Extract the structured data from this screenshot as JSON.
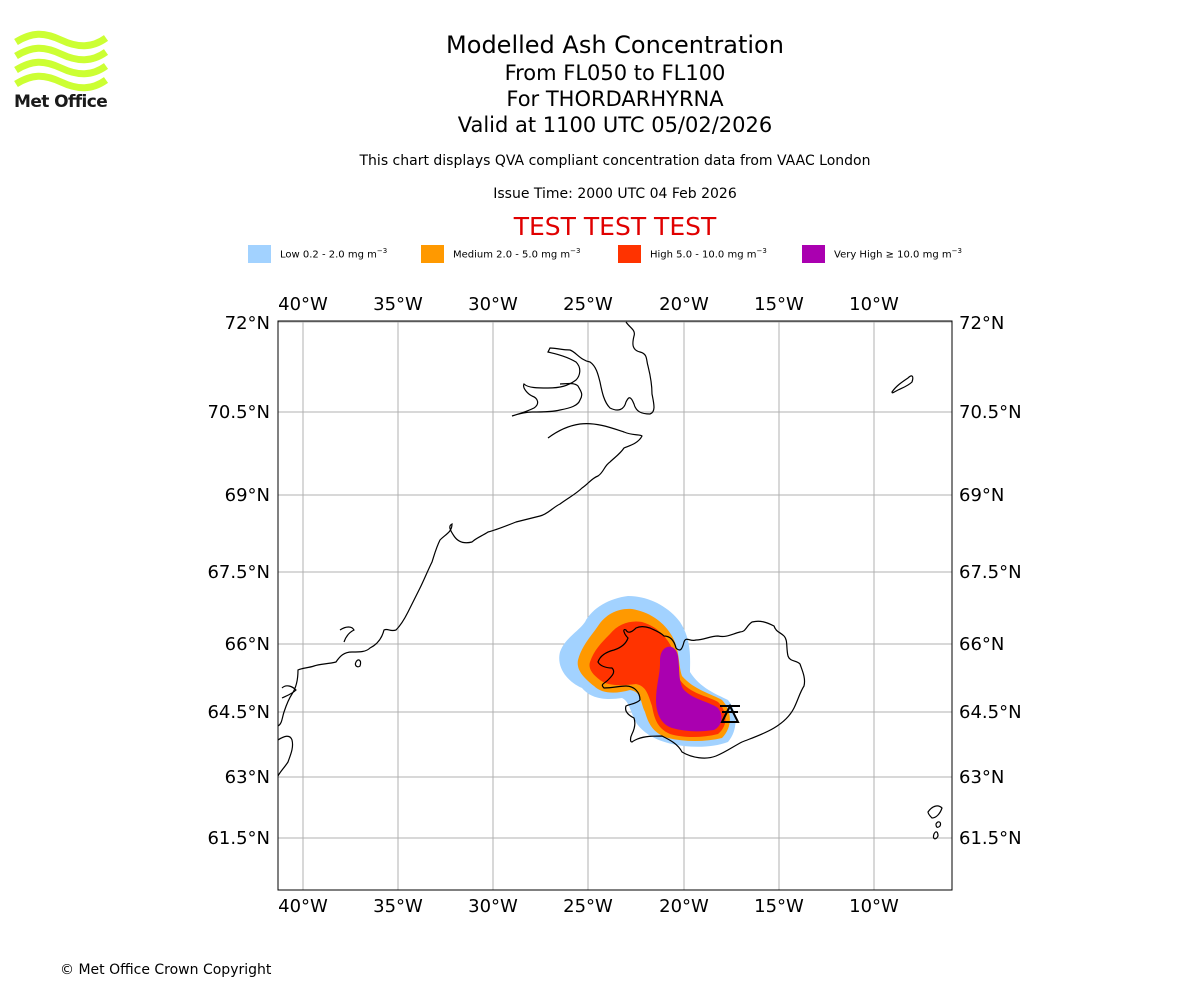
{
  "logo": {
    "text": "Met Office",
    "color": "#ccff33"
  },
  "titles": {
    "main": "Modelled Ash Concentration",
    "levels": "From FL050 to FL100",
    "volcano": "For THORDARHYRNA",
    "valid": "Valid at 1100 UTC 05/02/2026",
    "note": "This chart displays QVA compliant concentration data from VAAC London",
    "issue": "Issue Time: 2000 UTC 04 Feb 2026",
    "test": "TEST TEST TEST"
  },
  "legend": [
    {
      "label": "Low 0.2 - 2.0 mg m",
      "color": "#a2d2ff"
    },
    {
      "label": "Medium 2.0 - 5.0 mg m",
      "color": "#ff9900"
    },
    {
      "label": "High 5.0 - 10.0 mg m",
      "color": "#ff3300"
    },
    {
      "label": "Very High ≥ 10.0 mg m",
      "color": "#aa00b0"
    }
  ],
  "legend_unit_exp": "−3",
  "axes": {
    "lon_ticks": [
      "40°W",
      "35°W",
      "30°W",
      "25°W",
      "20°W",
      "15°W",
      "10°W"
    ],
    "lat_ticks": [
      "72°N",
      "70.5°N",
      "69°N",
      "67.5°N",
      "66°N",
      "64.5°N",
      "63°N",
      "61.5°N"
    ]
  },
  "copyright": "© Met Office Crown Copyright"
}
